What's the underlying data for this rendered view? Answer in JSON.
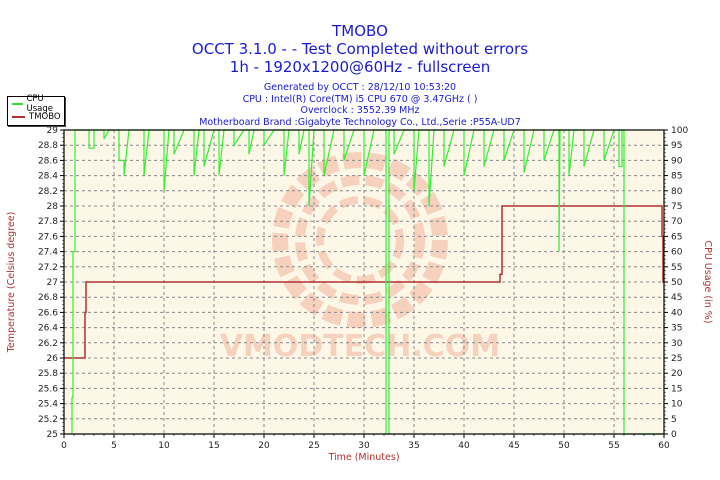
{
  "header": {
    "title_line1": "TMOBO",
    "title_line2": "OCCT 3.1.0 -  - Test Completed without errors",
    "title_line3": "1h - 1920x1200@60Hz - fullscreen",
    "generated": "Generated by OCCT : 28/12/10 10:53:20",
    "cpu": "CPU : Intel(R) Core(TM) i5 CPU 670 @ 3.47GHz (  )",
    "overclock": "Overclock : 3552.39 MHz",
    "motherboard": "Motherboard Brand :Gigabyte Technology Co., Ltd.,Serie :P55A-UD7"
  },
  "legend": {
    "items": [
      {
        "label": "CPU Usage",
        "color": "#33dd33"
      },
      {
        "label": "TMOBO",
        "color": "#b03030"
      }
    ]
  },
  "watermark": "VMODTECH.COM",
  "colors": {
    "plot_bg": "#fdf7e8",
    "cpu_line": "#33ee33",
    "temp_line": "#b03030",
    "title": "#1a1ad6",
    "axis_title": "#b03030",
    "grid": "#888888"
  },
  "chart_data": {
    "type": "line",
    "title": "TMOBO",
    "xlabel": "Time (Minutes)",
    "ylabel_left": "Temperature (Celsius degree)",
    "ylabel_right": "CPU Usage (in %)",
    "xlim": [
      0,
      60
    ],
    "ylim_left": [
      25,
      29
    ],
    "ylim_right": [
      0,
      100
    ],
    "x_ticks": [
      "0",
      "5",
      "10",
      "15",
      "20",
      "25",
      "30",
      "35",
      "40",
      "45",
      "50",
      "55",
      "60"
    ],
    "y_left_ticks": [
      "25",
      "25.2",
      "25.4",
      "25.6",
      "25.8",
      "26",
      "26.2",
      "26.4",
      "26.6",
      "26.8",
      "27",
      "27.2",
      "27.4",
      "27.6",
      "27.8",
      "28",
      "28.2",
      "28.4",
      "28.6",
      "28.8",
      "29"
    ],
    "y_right_ticks": [
      "0",
      "5",
      "10",
      "15",
      "20",
      "25",
      "30",
      "35",
      "40",
      "45",
      "50",
      "55",
      "60",
      "65",
      "70",
      "75",
      "80",
      "85",
      "90",
      "95",
      "100"
    ],
    "grid": true,
    "legend_position": "top-left",
    "series": [
      {
        "name": "TMOBO",
        "axis": "left",
        "points": [
          [
            0,
            26
          ],
          [
            2.1,
            26
          ],
          [
            2.1,
            26.6
          ],
          [
            2.2,
            26.6
          ],
          [
            2.2,
            27
          ],
          [
            43.6,
            27
          ],
          [
            43.6,
            27.1
          ],
          [
            43.8,
            27.1
          ],
          [
            43.8,
            28
          ],
          [
            59.8,
            28
          ],
          [
            59.8,
            27.6
          ],
          [
            59.9,
            27.6
          ],
          [
            59.9,
            27
          ],
          [
            60,
            27
          ]
        ]
      },
      {
        "name": "CPU Usage",
        "axis": "right",
        "points": [
          [
            0.8,
            0
          ],
          [
            0.8,
            12
          ],
          [
            0.9,
            12
          ],
          [
            0.9,
            60
          ],
          [
            1.1,
            60
          ],
          [
            1.1,
            100
          ],
          [
            2.5,
            100
          ],
          [
            2.5,
            94
          ],
          [
            3.0,
            94
          ],
          [
            3.0,
            100
          ],
          [
            4.0,
            100
          ],
          [
            4.0,
            97
          ],
          [
            4.5,
            100
          ],
          [
            5.5,
            100
          ],
          [
            5.5,
            90
          ],
          [
            6.0,
            90
          ],
          [
            6.0,
            85
          ],
          [
            6.5,
            100
          ],
          [
            8.0,
            100
          ],
          [
            8.0,
            85
          ],
          [
            8.5,
            100
          ],
          [
            10.0,
            100
          ],
          [
            10.0,
            80
          ],
          [
            10.5,
            100
          ],
          [
            11.0,
            100
          ],
          [
            11.0,
            92
          ],
          [
            12.0,
            100
          ],
          [
            13.0,
            100
          ],
          [
            13.0,
            85
          ],
          [
            13.5,
            100
          ],
          [
            14.0,
            100
          ],
          [
            14.0,
            88
          ],
          [
            15.0,
            100
          ],
          [
            15.5,
            100
          ],
          [
            15.5,
            85
          ],
          [
            16.0,
            100
          ],
          [
            17.0,
            100
          ],
          [
            17.0,
            95
          ],
          [
            18.0,
            100
          ],
          [
            18.5,
            100
          ],
          [
            18.5,
            92
          ],
          [
            19.0,
            100
          ],
          [
            20.0,
            100
          ],
          [
            20.0,
            95
          ],
          [
            21.0,
            100
          ],
          [
            22.0,
            100
          ],
          [
            22.0,
            85
          ],
          [
            22.5,
            100
          ],
          [
            23.5,
            100
          ],
          [
            23.5,
            92
          ],
          [
            24.0,
            100
          ],
          [
            24.5,
            100
          ],
          [
            24.5,
            75
          ],
          [
            25.0,
            100
          ],
          [
            26.0,
            100
          ],
          [
            26.0,
            85
          ],
          [
            27.0,
            100
          ],
          [
            28.0,
            100
          ],
          [
            28.0,
            90
          ],
          [
            29.0,
            100
          ],
          [
            30.0,
            100
          ],
          [
            30.0,
            85
          ],
          [
            31.0,
            100
          ],
          [
            32.2,
            100
          ],
          [
            32.2,
            0
          ],
          [
            32.5,
            0
          ],
          [
            32.5,
            100
          ],
          [
            33.0,
            100
          ],
          [
            33.0,
            92
          ],
          [
            34.0,
            100
          ],
          [
            35.0,
            100
          ],
          [
            35.0,
            80
          ],
          [
            35.5,
            100
          ],
          [
            36.5,
            100
          ],
          [
            36.5,
            75
          ],
          [
            37.0,
            100
          ],
          [
            38.0,
            100
          ],
          [
            38.0,
            88
          ],
          [
            39.0,
            100
          ],
          [
            40.0,
            100
          ],
          [
            40.0,
            85
          ],
          [
            41.0,
            100
          ],
          [
            42.0,
            100
          ],
          [
            42.0,
            88
          ],
          [
            43.0,
            100
          ],
          [
            44.0,
            100
          ],
          [
            44.0,
            90
          ],
          [
            45.0,
            100
          ],
          [
            46.0,
            100
          ],
          [
            46.0,
            86
          ],
          [
            47.0,
            100
          ],
          [
            48.0,
            100
          ],
          [
            48.0,
            90
          ],
          [
            49.0,
            100
          ],
          [
            49.5,
            100
          ],
          [
            49.5,
            60
          ],
          [
            49.6,
            100
          ],
          [
            50.5,
            100
          ],
          [
            50.5,
            85
          ],
          [
            51.0,
            100
          ],
          [
            52.0,
            100
          ],
          [
            52.0,
            88
          ],
          [
            53.0,
            100
          ],
          [
            54.0,
            100
          ],
          [
            54.0,
            90
          ],
          [
            55.0,
            100
          ],
          [
            55.5,
            100
          ],
          [
            55.5,
            88
          ],
          [
            55.8,
            88
          ],
          [
            55.8,
            100
          ],
          [
            56.0,
            100
          ],
          [
            56.0,
            0
          ],
          [
            60,
            0
          ]
        ]
      }
    ]
  }
}
